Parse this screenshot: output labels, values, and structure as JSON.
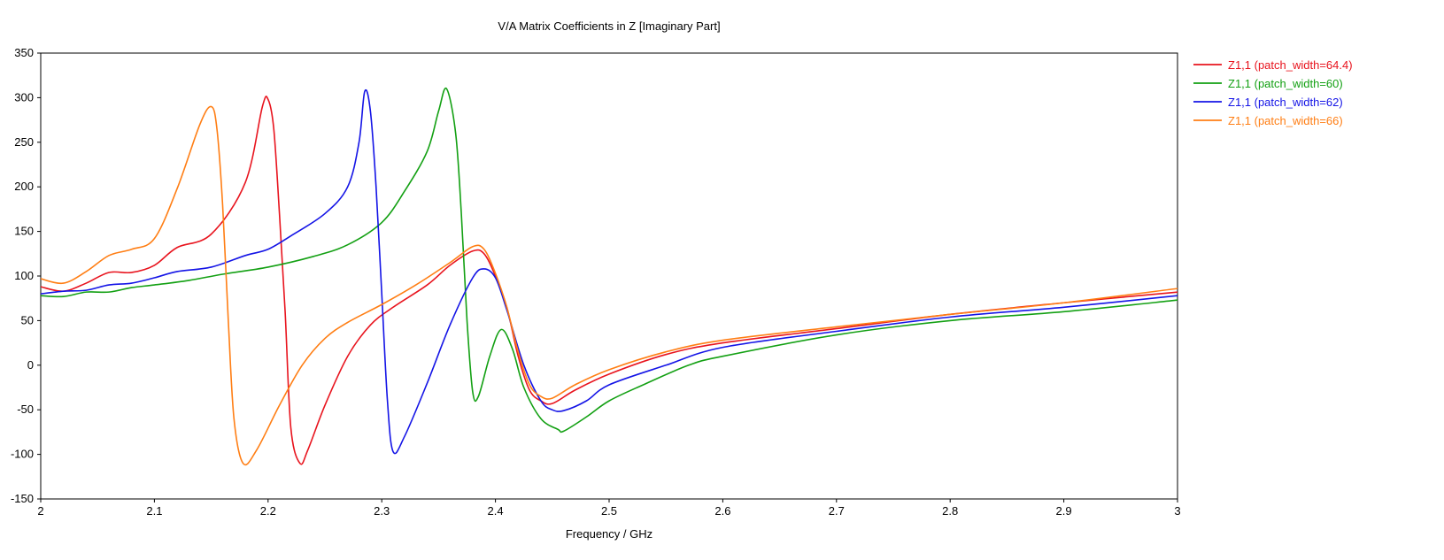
{
  "chart_data": {
    "type": "line",
    "title": "V/A Matrix Coefficients in Z [Imaginary Part]",
    "xlabel": "Frequency / GHz",
    "ylabel": "",
    "xlim": [
      2,
      3
    ],
    "ylim": [
      -150,
      350
    ],
    "x_ticks": [
      "2",
      "2.1",
      "2.2",
      "2.3",
      "2.4",
      "2.5",
      "2.6",
      "2.7",
      "2.8",
      "2.9",
      "3"
    ],
    "y_ticks": [
      "350",
      "300",
      "250",
      "200",
      "150",
      "100",
      "50",
      "0",
      "-50",
      "-100",
      "-150"
    ],
    "grid": true,
    "legend_position": "right",
    "series": [
      {
        "name": "Z1,1 (patch_width=64.4)",
        "color": "#e8141e",
        "points": [
          [
            2.0,
            88
          ],
          [
            2.02,
            83
          ],
          [
            2.04,
            92
          ],
          [
            2.06,
            104
          ],
          [
            2.08,
            104
          ],
          [
            2.1,
            112
          ],
          [
            2.12,
            132
          ],
          [
            2.15,
            147
          ],
          [
            2.18,
            205
          ],
          [
            2.195,
            290
          ],
          [
            2.2,
            298
          ],
          [
            2.205,
            265
          ],
          [
            2.21,
            170
          ],
          [
            2.215,
            60
          ],
          [
            2.22,
            -70
          ],
          [
            2.228,
            -110
          ],
          [
            2.235,
            -95
          ],
          [
            2.25,
            -45
          ],
          [
            2.27,
            10
          ],
          [
            2.29,
            45
          ],
          [
            2.31,
            65
          ],
          [
            2.34,
            90
          ],
          [
            2.36,
            112
          ],
          [
            2.38,
            128
          ],
          [
            2.39,
            125
          ],
          [
            2.4,
            100
          ],
          [
            2.41,
            65
          ],
          [
            2.42,
            10
          ],
          [
            2.43,
            -28
          ],
          [
            2.44,
            -40
          ],
          [
            2.45,
            -43
          ],
          [
            2.47,
            -28
          ],
          [
            2.5,
            -10
          ],
          [
            2.55,
            12
          ],
          [
            2.6,
            25
          ],
          [
            2.7,
            41
          ],
          [
            2.8,
            57
          ],
          [
            2.9,
            70
          ],
          [
            3.0,
            82
          ]
        ]
      },
      {
        "name": "Z1,1 (patch_width=60)",
        "color": "#13a013",
        "points": [
          [
            2.0,
            78
          ],
          [
            2.02,
            77
          ],
          [
            2.04,
            82
          ],
          [
            2.06,
            82
          ],
          [
            2.08,
            87
          ],
          [
            2.1,
            90
          ],
          [
            2.13,
            95
          ],
          [
            2.16,
            102
          ],
          [
            2.2,
            110
          ],
          [
            2.24,
            122
          ],
          [
            2.27,
            135
          ],
          [
            2.3,
            160
          ],
          [
            2.32,
            195
          ],
          [
            2.34,
            240
          ],
          [
            2.35,
            285
          ],
          [
            2.357,
            310
          ],
          [
            2.365,
            260
          ],
          [
            2.37,
            170
          ],
          [
            2.375,
            50
          ],
          [
            2.38,
            -30
          ],
          [
            2.385,
            -35
          ],
          [
            2.395,
            10
          ],
          [
            2.405,
            40
          ],
          [
            2.415,
            18
          ],
          [
            2.425,
            -25
          ],
          [
            2.44,
            -60
          ],
          [
            2.455,
            -72
          ],
          [
            2.46,
            -74
          ],
          [
            2.48,
            -58
          ],
          [
            2.5,
            -40
          ],
          [
            2.53,
            -22
          ],
          [
            2.57,
            0
          ],
          [
            2.6,
            10
          ],
          [
            2.7,
            34
          ],
          [
            2.8,
            50
          ],
          [
            2.9,
            60
          ],
          [
            3.0,
            73
          ]
        ]
      },
      {
        "name": "Z1,1 (patch_width=62)",
        "color": "#1414e6",
        "points": [
          [
            2.0,
            80
          ],
          [
            2.02,
            83
          ],
          [
            2.04,
            84
          ],
          [
            2.06,
            90
          ],
          [
            2.08,
            92
          ],
          [
            2.1,
            98
          ],
          [
            2.12,
            105
          ],
          [
            2.15,
            110
          ],
          [
            2.18,
            123
          ],
          [
            2.2,
            130
          ],
          [
            2.22,
            145
          ],
          [
            2.25,
            170
          ],
          [
            2.27,
            200
          ],
          [
            2.28,
            250
          ],
          [
            2.285,
            307
          ],
          [
            2.29,
            285
          ],
          [
            2.295,
            200
          ],
          [
            2.3,
            80
          ],
          [
            2.305,
            -40
          ],
          [
            2.31,
            -97
          ],
          [
            2.32,
            -80
          ],
          [
            2.34,
            -20
          ],
          [
            2.36,
            45
          ],
          [
            2.38,
            98
          ],
          [
            2.39,
            108
          ],
          [
            2.4,
            98
          ],
          [
            2.41,
            62
          ],
          [
            2.425,
            0
          ],
          [
            2.44,
            -40
          ],
          [
            2.45,
            -50
          ],
          [
            2.46,
            -51
          ],
          [
            2.48,
            -40
          ],
          [
            2.5,
            -22
          ],
          [
            2.55,
            0
          ],
          [
            2.6,
            20
          ],
          [
            2.7,
            38
          ],
          [
            2.8,
            54
          ],
          [
            2.9,
            65
          ],
          [
            3.0,
            78
          ]
        ]
      },
      {
        "name": "Z1,1 (patch_width=66)",
        "color": "#ff7e14",
        "points": [
          [
            2.0,
            97
          ],
          [
            2.02,
            92
          ],
          [
            2.04,
            105
          ],
          [
            2.06,
            123
          ],
          [
            2.08,
            130
          ],
          [
            2.1,
            142
          ],
          [
            2.12,
            198
          ],
          [
            2.14,
            270
          ],
          [
            2.15,
            290
          ],
          [
            2.155,
            265
          ],
          [
            2.16,
            180
          ],
          [
            2.165,
            50
          ],
          [
            2.17,
            -60
          ],
          [
            2.178,
            -110
          ],
          [
            2.19,
            -95
          ],
          [
            2.21,
            -45
          ],
          [
            2.23,
            0
          ],
          [
            2.25,
            30
          ],
          [
            2.27,
            48
          ],
          [
            2.3,
            68
          ],
          [
            2.33,
            90
          ],
          [
            2.36,
            115
          ],
          [
            2.38,
            133
          ],
          [
            2.39,
            130
          ],
          [
            2.4,
            103
          ],
          [
            2.41,
            65
          ],
          [
            2.42,
            15
          ],
          [
            2.43,
            -22
          ],
          [
            2.44,
            -35
          ],
          [
            2.45,
            -37
          ],
          [
            2.47,
            -22
          ],
          [
            2.5,
            -5
          ],
          [
            2.55,
            15
          ],
          [
            2.6,
            28
          ],
          [
            2.7,
            43
          ],
          [
            2.8,
            57
          ],
          [
            2.9,
            70
          ],
          [
            3.0,
            86
          ]
        ]
      }
    ]
  }
}
